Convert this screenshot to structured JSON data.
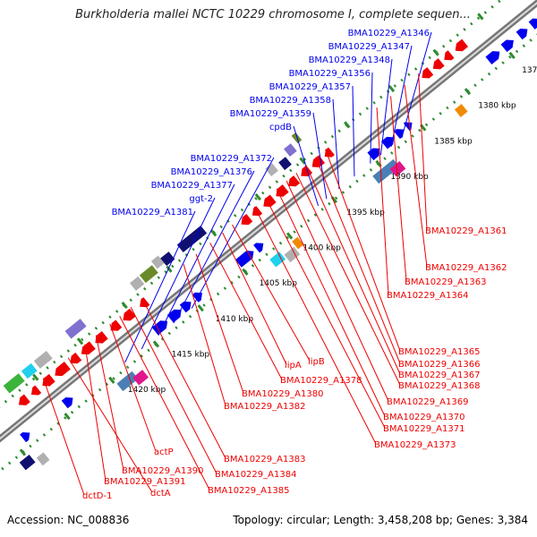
{
  "map": {
    "title": "Burkholderia mallei NCTC 10229 chromosome I, complete sequen...",
    "accession": "Accession: NC_008836",
    "summary": "Topology: circular; Length: 3,458,208 bp; Genes: 3,384",
    "ticks": [
      "1370 kbp",
      "1375 kbp",
      "1380 kbp",
      "1385 kbp",
      "1390 kbp",
      "1395 kbp",
      "1400 kbp",
      "1405 kbp",
      "1410 kbp",
      "1415 kbp",
      "1420 kbp"
    ],
    "upper_gene_labels": [
      "BMA10229_A1346",
      "BMA10229_A1347",
      "BMA10229_A1348",
      "BMA10229_A1356",
      "BMA10229_A1357",
      "BMA10229_A1358",
      "BMA10229_A1359",
      "cpdB",
      "BMA10229_A1372",
      "BMA10229_A1376",
      "BMA10229_A1377",
      "ggt-2",
      "BMA10229_A1381"
    ],
    "lower_gene_labels": [
      "BMA10229_A1361",
      "BMA10229_A1362",
      "BMA10229_A1363",
      "BMA10229_A1364",
      "BMA10229_A1365",
      "BMA10229_A1366",
      "BMA10229_A1367",
      "BMA10229_A1368",
      "BMA10229_A1369",
      "BMA10229_A1370",
      "BMA10229_A1371",
      "BMA10229_A1373",
      "lipB",
      "lipA",
      "BMA10229_A1378",
      "BMA10229_A1380",
      "BMA10229_A1382",
      "BMA10229_A1383",
      "BMA10229_A1384",
      "BMA10229_A1385",
      "actP",
      "BMA10229_A1390",
      "BMA10229_A1391",
      "dctA",
      "dctD-1"
    ],
    "colors": {
      "forward_strand": "#0000ee",
      "reverse_strand": "#ee0000",
      "backbone": "#777777",
      "tick_dots": "#2e8b2e",
      "cog_blue": "#4a7fb5",
      "cog_magenta": "#e0168a",
      "cog_orange": "#f08a00",
      "cog_cyan": "#20d0ee",
      "cog_green": "#3cb43c",
      "cog_olive": "#6a8a2a",
      "cog_navy": "#101070",
      "cog_grey": "#b0b0b0",
      "cog_purple": "#8070d0"
    }
  }
}
